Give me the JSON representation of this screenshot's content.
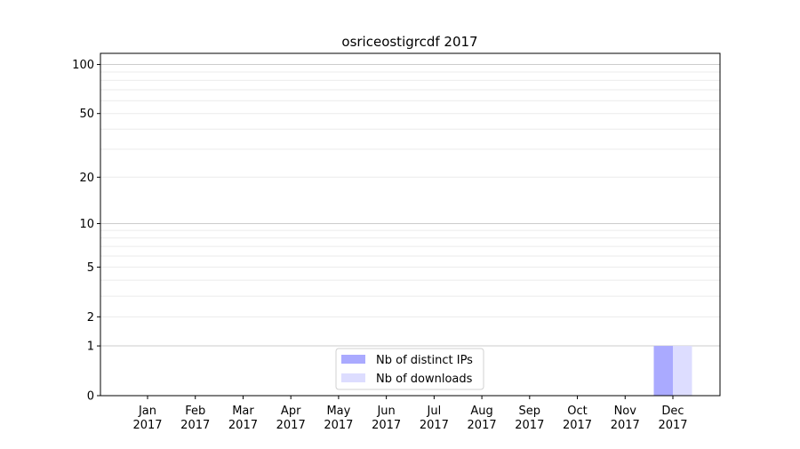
{
  "chart_data": {
    "type": "bar",
    "title": "osriceostigrcdf 2017",
    "xlabel": "",
    "ylabel": "",
    "y_scale": "log(1+y)",
    "yticks": [
      0,
      1,
      2,
      5,
      10,
      20,
      50,
      100
    ],
    "ylim": [
      0,
      117
    ],
    "grid": true,
    "legend_position": "bottom-center",
    "categories": [
      {
        "month": "Jan",
        "year": "2017"
      },
      {
        "month": "Feb",
        "year": "2017"
      },
      {
        "month": "Mar",
        "year": "2017"
      },
      {
        "month": "Apr",
        "year": "2017"
      },
      {
        "month": "May",
        "year": "2017"
      },
      {
        "month": "Jun",
        "year": "2017"
      },
      {
        "month": "Jul",
        "year": "2017"
      },
      {
        "month": "Aug",
        "year": "2017"
      },
      {
        "month": "Sep",
        "year": "2017"
      },
      {
        "month": "Oct",
        "year": "2017"
      },
      {
        "month": "Nov",
        "year": "2017"
      },
      {
        "month": "Dec",
        "year": "2017"
      }
    ],
    "series": [
      {
        "name": "Nb of distinct IPs",
        "color": "#aaaaff",
        "values": [
          0,
          0,
          0,
          0,
          0,
          0,
          0,
          0,
          0,
          0,
          0,
          1
        ]
      },
      {
        "name": "Nb of downloads",
        "color": "#ddddff",
        "values": [
          0,
          0,
          0,
          0,
          0,
          0,
          0,
          0,
          0,
          0,
          0,
          1
        ]
      }
    ]
  }
}
